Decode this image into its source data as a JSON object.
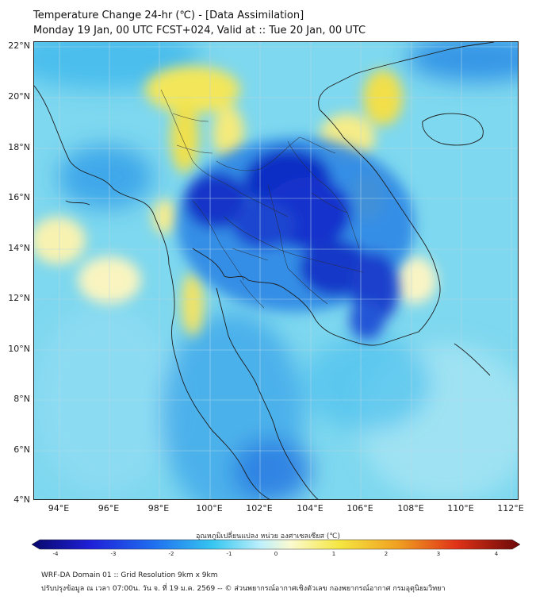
{
  "title": {
    "line1": "Temperature Change 24-hr (℃) - [Data Assimilation]",
    "line2": "Monday 19 Jan, 00 UTC FCST+024, Valid at :: Tue 20 Jan, 00 UTC"
  },
  "axes": {
    "lat_labels": [
      "22°N",
      "20°N",
      "18°N",
      "16°N",
      "14°N",
      "12°N",
      "10°N",
      "8°N",
      "6°N",
      "4°N"
    ],
    "lon_labels": [
      "94°E",
      "96°E",
      "98°E",
      "100°E",
      "102°E",
      "104°E",
      "106°E",
      "108°E",
      "110°E",
      "112°E"
    ],
    "lat_range": [
      4,
      22.2
    ],
    "lon_range": [
      93,
      112.3
    ]
  },
  "colorbar": {
    "title": "อุณหภูมิเปลี่ยนแปลง หน่วย องศาเซลเซียส (℃)",
    "ticks": [
      "-4",
      "-3",
      "-2",
      "-1",
      "0",
      "1",
      "2",
      "3",
      "4"
    ],
    "range": [
      -4,
      4
    ]
  },
  "footer": {
    "line1": "WRF-DA Domain 01 :: Grid Resolution 9km x 9km",
    "line2": "ปรับปรุงข้อมูล ณ เวลา 07:00น. วัน จ. ที่ 19 ม.ค. 2569 -- © ส่วนพยากรณ์อากาศเชิงตัวเลข กองพยากรณ์อากาศ กรมอุตุนิยมวิทยา"
  },
  "colors": {
    "base": "#6fd3ec",
    "cool": "#0a1fb8",
    "warm": "#f2e04a"
  }
}
